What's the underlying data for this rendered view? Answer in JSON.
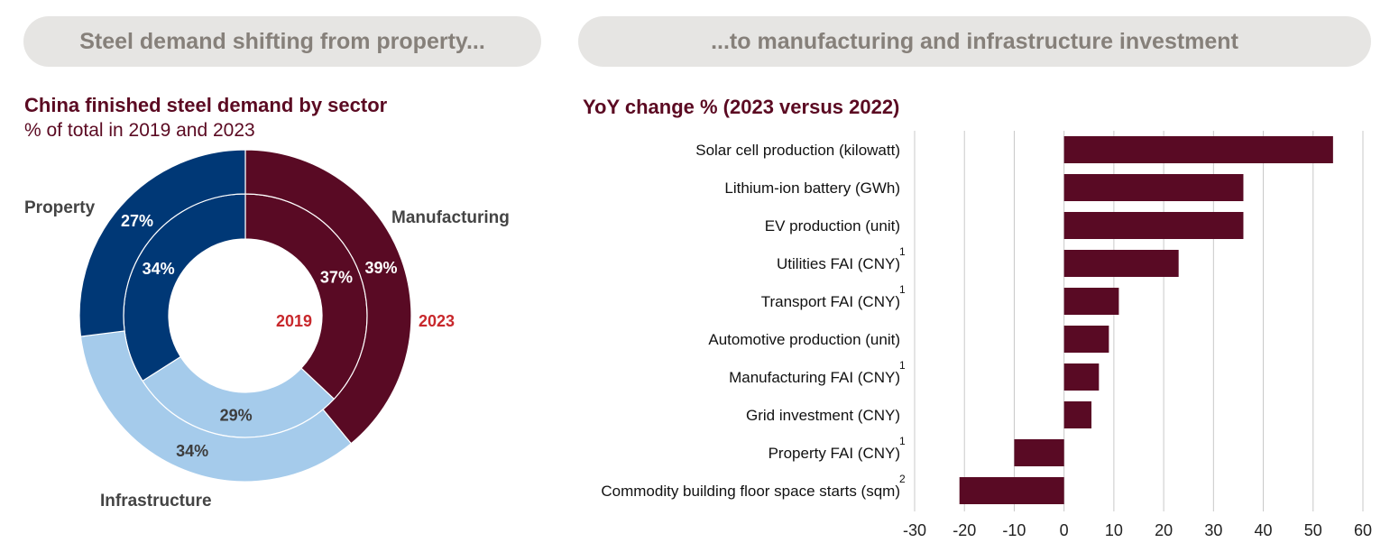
{
  "header": {
    "left_banner": "Steel demand shifting from property...",
    "right_banner": "...to manufacturing and infrastructure investment"
  },
  "colors": {
    "manufacturing": "#590a24",
    "property": "#003876",
    "infrastructure": "#a5cbeb",
    "year_label": "#c8282c",
    "banner_bg": "#e6e5e3",
    "banner_text": "#86807a",
    "title_text": "#5b0a22",
    "bar": "#590a24",
    "grid": "#c8c8c8"
  },
  "chart_data": [
    {
      "type": "pie",
      "variant": "double-donut",
      "title": "China finished steel demand by sector",
      "subtitle": "% of total in 2019 and 2023",
      "inner_ring_label": "2019",
      "outer_ring_label": "2023",
      "categories": [
        "Manufacturing",
        "Infrastructure",
        "Property"
      ],
      "series": [
        {
          "name": "2019",
          "values": [
            37,
            29,
            34
          ],
          "labels": [
            "37%",
            "29%",
            "34%"
          ]
        },
        {
          "name": "2023",
          "values": [
            39,
            34,
            27
          ],
          "labels": [
            "39%",
            "34%",
            "27%"
          ]
        }
      ]
    },
    {
      "type": "bar",
      "orientation": "horizontal",
      "title": "YoY change % (2023 versus 2022)",
      "categories": [
        "Solar cell production (kilowatt)",
        "Lithium-ion battery (GWh)",
        "EV production (unit)",
        "Utilities FAI (CNY)",
        "Transport FAI (CNY)",
        "Automotive production (unit)",
        "Manufacturing FAI (CNY)",
        "Grid investment (CNY)",
        "Property FAI (CNY)",
        "Commodity building floor space starts (sqm)"
      ],
      "footnotes": [
        "",
        "",
        "",
        "1",
        "1",
        "",
        "1",
        "",
        "1",
        "2"
      ],
      "values": [
        54,
        36,
        36,
        23,
        11,
        9,
        7,
        5.5,
        -10,
        -21
      ],
      "xlim": [
        -30,
        60
      ],
      "xticks": [
        -30,
        -20,
        -10,
        0,
        10,
        20,
        30,
        40,
        50,
        60
      ],
      "grid": true
    }
  ]
}
